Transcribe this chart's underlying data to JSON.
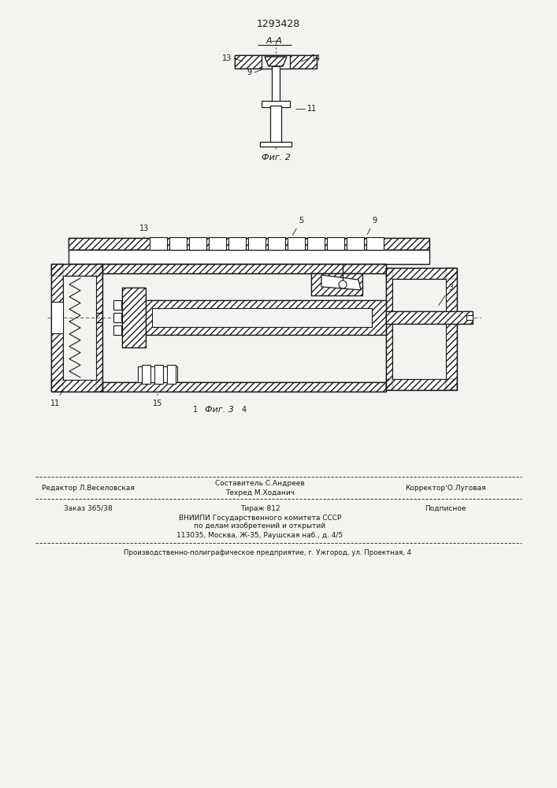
{
  "patent_number": "1293428",
  "bg_color": "#f5f3f0",
  "line_color": "#1a1a1a",
  "footer_left1": "Редактор Л.Веселовская",
  "footer_mid1": "Составитель С.Андреев",
  "footer_right1": "КорректорʼО.Луговая",
  "footer_mid2": "Техред М.Ходанич",
  "footer_zakaz": "Заказ 365/38",
  "footer_tirazh": "Тираж 812",
  "footer_podp": "Подписное",
  "footer_vnipi": "ВНИИПИ Государственного комитета СССР",
  "footer_po_delam": "по делам изобретений и открытий",
  "footer_addr": "113035, Москва, Ж-35, Раушская наб., д. 4/5",
  "footer_prod": "Производственно-полиграфическое предприятие, г. Ужгород, ул. Проектная, 4"
}
